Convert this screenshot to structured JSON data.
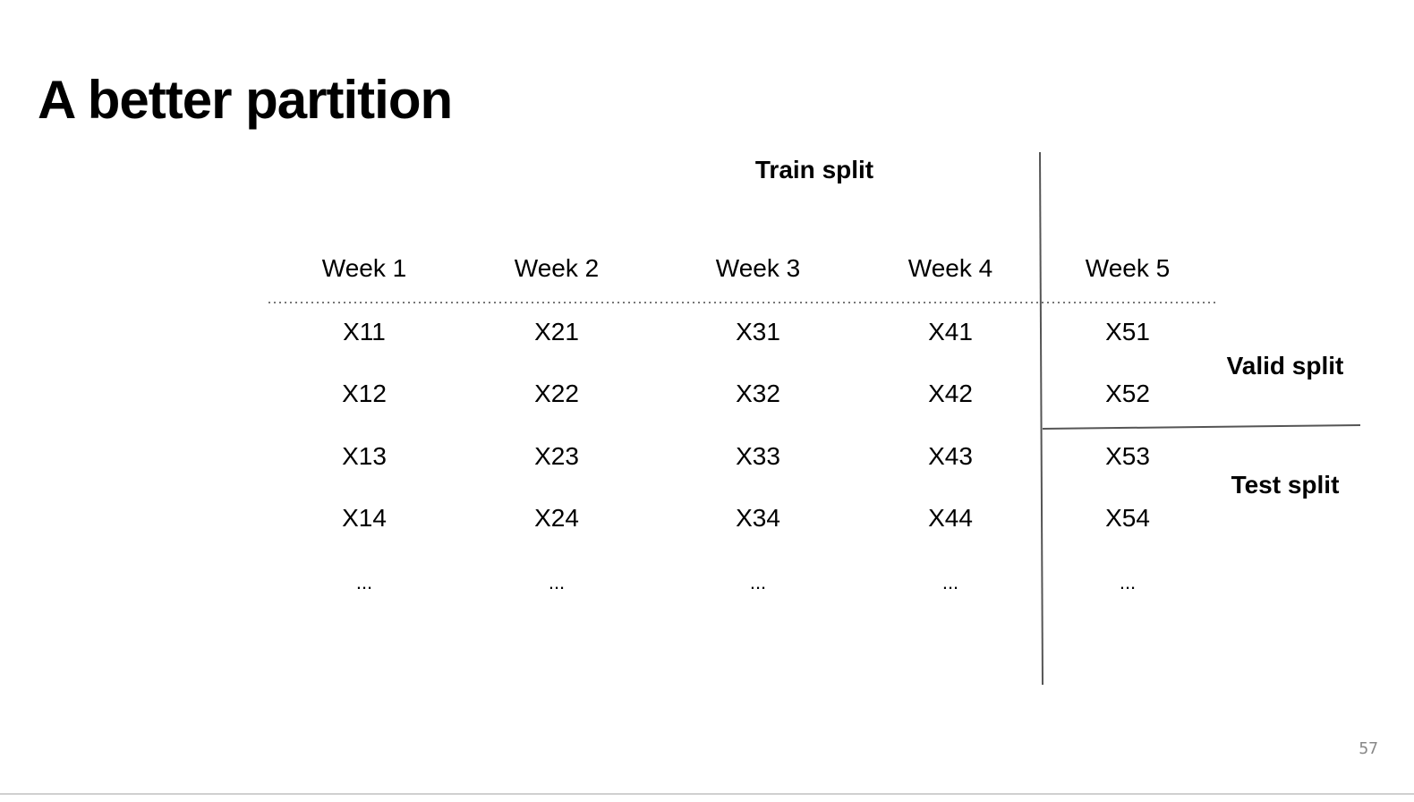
{
  "title": "A better partition",
  "train_label": "Train split",
  "valid_label": "Valid split",
  "test_label": "Test split",
  "page_number": "57",
  "columns": [
    "Week 1",
    "Week 2",
    "Week 3",
    "Week 4",
    "Week 5"
  ],
  "rows": [
    [
      "X11",
      "X21",
      "X31",
      "X41",
      "X51"
    ],
    [
      "X12",
      "X22",
      "X32",
      "X42",
      "X52"
    ],
    [
      "X13",
      "X23",
      "X33",
      "X43",
      "X53"
    ],
    [
      "X14",
      "X24",
      "X34",
      "X44",
      "X54"
    ],
    [
      "...",
      "...",
      "...",
      "...",
      "..."
    ]
  ]
}
